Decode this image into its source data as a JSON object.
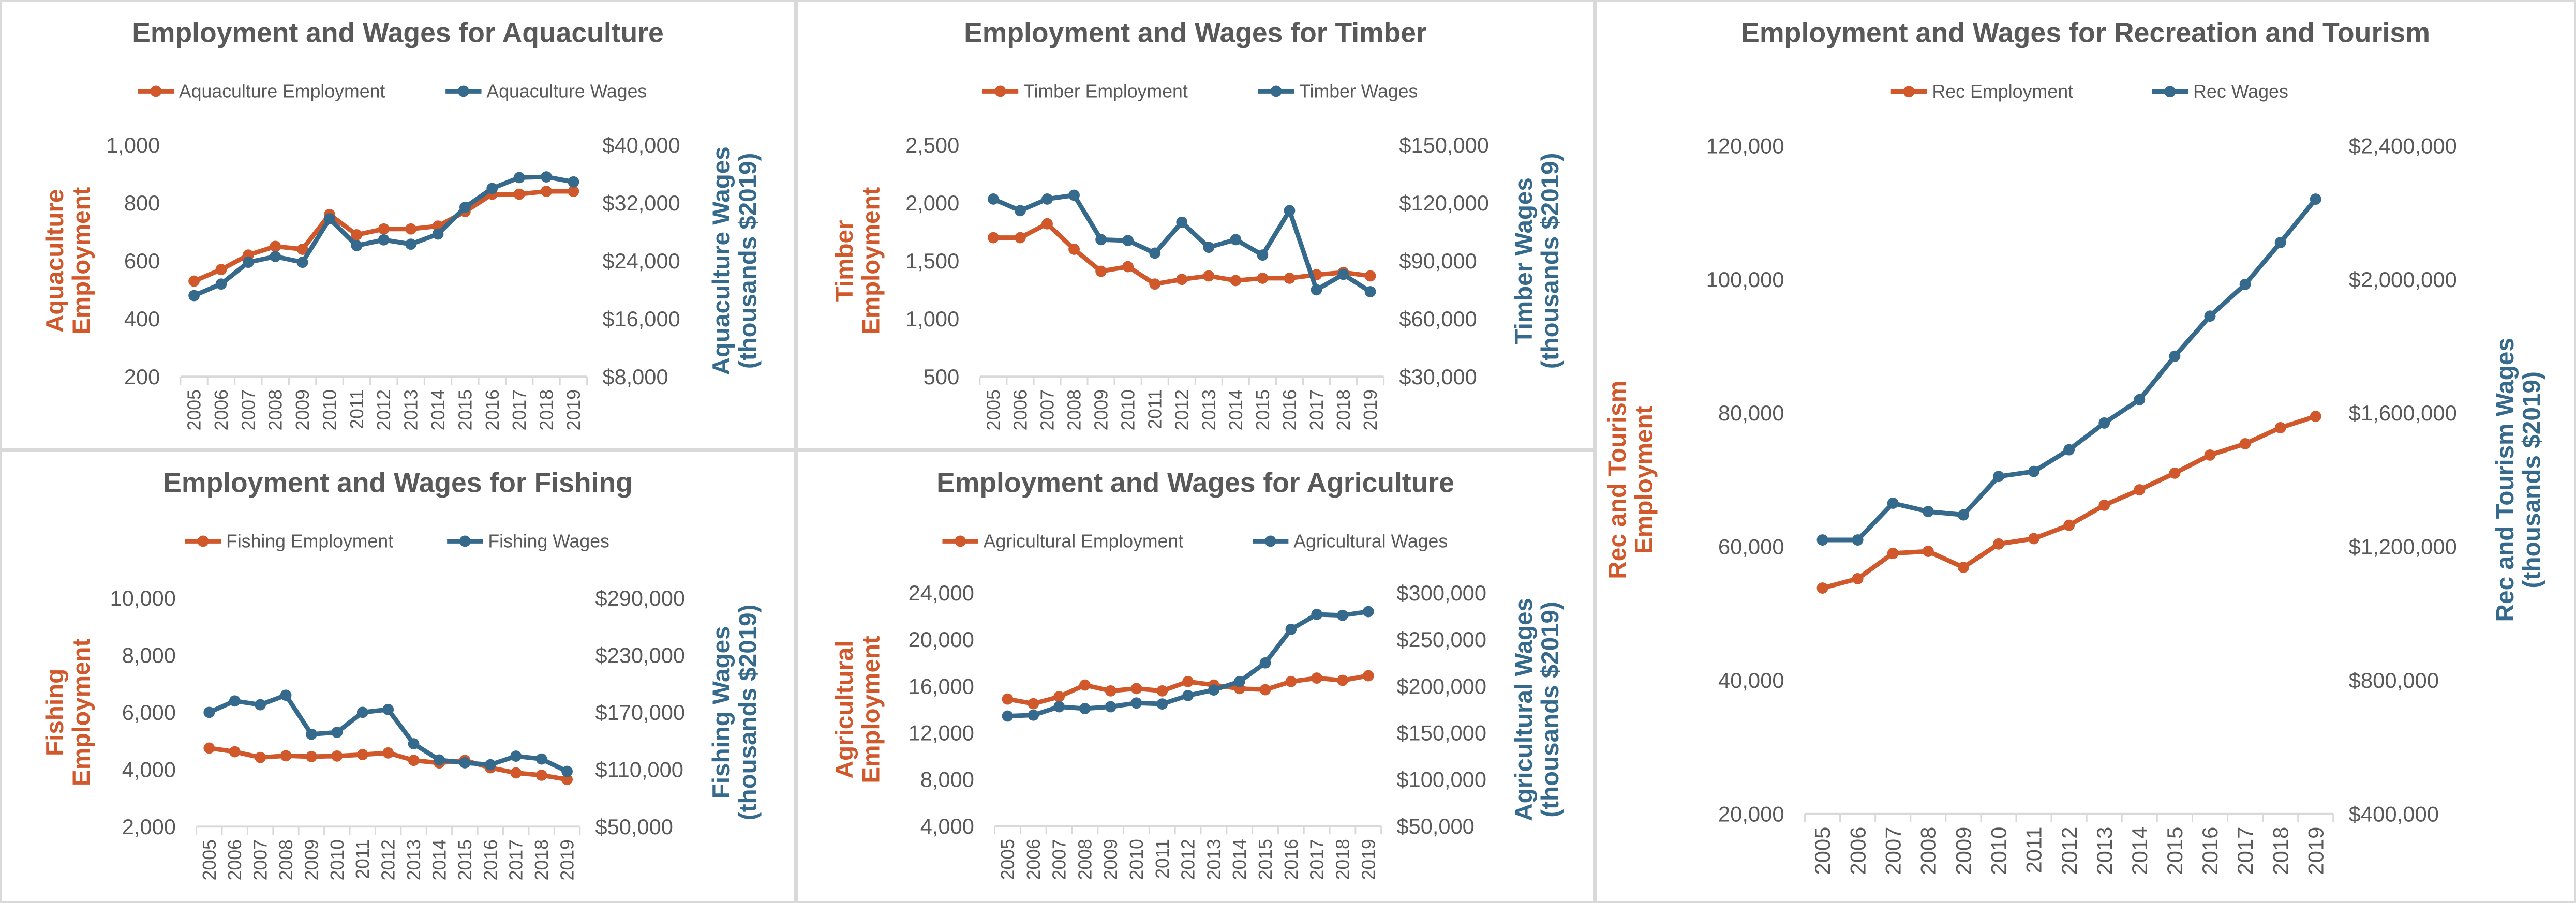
{
  "colors": {
    "employment": "#d0582b",
    "wages": "#356a8c",
    "grid_axis": "#d9d9d9",
    "text": "#595959"
  },
  "chart_data": [
    {
      "id": "aquaculture",
      "type": "line",
      "title": "Employment and Wages for Aquaculture",
      "categories": [
        "2005",
        "2006",
        "2007",
        "2008",
        "2009",
        "2010",
        "2011",
        "2012",
        "2013",
        "2014",
        "2015",
        "2016",
        "2017",
        "2018",
        "2019"
      ],
      "series": [
        {
          "name": "Aquaculture Employment",
          "axis": "left",
          "color": "#d0582b",
          "values": [
            530,
            570,
            620,
            650,
            640,
            760,
            690,
            710,
            710,
            720,
            770,
            830,
            830,
            840,
            840
          ]
        },
        {
          "name": "Aquaculture Wages",
          "axis": "right",
          "color": "#356a8c",
          "values": [
            19200,
            20800,
            23800,
            24600,
            23800,
            29800,
            26100,
            26900,
            26300,
            27700,
            31400,
            34000,
            35500,
            35600,
            34900
          ]
        }
      ],
      "ylabel": "Aquaculture\nEmployment",
      "y2label": "Aquaculture Wages\n(thousands $2019)",
      "ylim": [
        200,
        1000
      ],
      "yticks": [
        "1,000",
        "800",
        "600",
        "400",
        "200"
      ],
      "y2lim": [
        8000,
        40000
      ],
      "y2ticks": [
        "$40,000",
        "$32,000",
        "$24,000",
        "$16,000",
        "$8,000"
      ],
      "legend": "top",
      "grid": false
    },
    {
      "id": "timber",
      "type": "line",
      "title": "Employment and Wages for Timber",
      "categories": [
        "2005",
        "2006",
        "2007",
        "2008",
        "2009",
        "2010",
        "2011",
        "2012",
        "2013",
        "2014",
        "2015",
        "2016",
        "2017",
        "2018",
        "2019"
      ],
      "series": [
        {
          "name": "Timber Employment",
          "axis": "left",
          "color": "#d0582b",
          "values": [
            1700,
            1700,
            1820,
            1600,
            1410,
            1450,
            1300,
            1340,
            1370,
            1330,
            1350,
            1350,
            1380,
            1400,
            1370
          ]
        },
        {
          "name": "Timber Wages",
          "axis": "right",
          "color": "#356a8c",
          "values": [
            122000,
            116000,
            122000,
            124000,
            101000,
            100500,
            94000,
            110000,
            97000,
            101000,
            93000,
            116000,
            75000,
            83000,
            74000
          ]
        }
      ],
      "ylabel": "Timber\nEmployment",
      "y2label": "Timber Wages\n(thousands $2019)",
      "ylim": [
        500,
        2500
      ],
      "yticks": [
        "2,500",
        "2,000",
        "1,500",
        "1,000",
        "500"
      ],
      "y2lim": [
        30000,
        150000
      ],
      "y2ticks": [
        "$150,000",
        "$120,000",
        "$90,000",
        "$60,000",
        "$30,000"
      ],
      "legend": "top",
      "grid": false
    },
    {
      "id": "fishing",
      "type": "line",
      "title": "Employment and Wages for Fishing",
      "categories": [
        "2005",
        "2006",
        "2007",
        "2008",
        "2009",
        "2010",
        "2011",
        "2012",
        "2013",
        "2014",
        "2015",
        "2016",
        "2017",
        "2018",
        "2019"
      ],
      "series": [
        {
          "name": "Fishing Employment",
          "axis": "left",
          "color": "#d0582b",
          "values": [
            4750,
            4620,
            4420,
            4480,
            4450,
            4470,
            4520,
            4580,
            4320,
            4230,
            4320,
            4060,
            3880,
            3800,
            3650
          ]
        },
        {
          "name": "Fishing Wages",
          "axis": "right",
          "color": "#356a8c",
          "values": [
            170000,
            182000,
            178000,
            188000,
            147000,
            149000,
            170000,
            173000,
            137000,
            120000,
            117000,
            115000,
            124000,
            121000,
            108000
          ]
        }
      ],
      "ylabel": "Fishing\nEmployment",
      "y2label": "Fishing Wages\n(thousands $2019)",
      "ylim": [
        2000,
        10000
      ],
      "yticks": [
        "10,000",
        "8,000",
        "6,000",
        "4,000",
        "2,000"
      ],
      "y2lim": [
        50000,
        290000
      ],
      "y2ticks": [
        "$290,000",
        "$230,000",
        "$170,000",
        "$110,000",
        "$50,000"
      ],
      "legend": "top",
      "grid": false
    },
    {
      "id": "agriculture",
      "type": "line",
      "title": "Employment and Wages for Agriculture",
      "categories": [
        "2005",
        "2006",
        "2007",
        "2008",
        "2009",
        "2010",
        "2011",
        "2012",
        "2013",
        "2014",
        "2015",
        "2016",
        "2017",
        "2018",
        "2019"
      ],
      "series": [
        {
          "name": "Agricultural Employment",
          "axis": "left",
          "color": "#d0582b",
          "values": [
            14900,
            14500,
            15100,
            16100,
            15600,
            15800,
            15600,
            16400,
            16100,
            15800,
            15700,
            16400,
            16700,
            16500,
            16900
          ]
        },
        {
          "name": "Agricultural Wages",
          "axis": "right",
          "color": "#356a8c",
          "values": [
            168000,
            169000,
            178000,
            176000,
            178000,
            182000,
            181000,
            190000,
            196000,
            205000,
            225000,
            261000,
            277000,
            276000,
            280000
          ]
        }
      ],
      "ylabel": "Agricultural\nEmployment",
      "y2label": "Agricultural Wages\n(thousands $2019)",
      "ylim": [
        4000,
        24000
      ],
      "yticks": [
        "24,000",
        "20,000",
        "16,000",
        "12,000",
        "8,000",
        "4,000"
      ],
      "y2lim": [
        50000,
        300000
      ],
      "y2ticks": [
        "$300,000",
        "$250,000",
        "$200,000",
        "$150,000",
        "$100,000",
        "$50,000"
      ],
      "legend": "top",
      "grid": false
    },
    {
      "id": "recreation",
      "type": "line",
      "title": "Employment and Wages for Recreation and Tourism",
      "categories": [
        "2005",
        "2006",
        "2007",
        "2008",
        "2009",
        "2010",
        "2011",
        "2012",
        "2013",
        "2014",
        "2015",
        "2016",
        "2017",
        "2018",
        "2019"
      ],
      "series": [
        {
          "name": "Rec Employment",
          "axis": "left",
          "color": "#d0582b",
          "values": [
            53800,
            55200,
            59000,
            59300,
            56900,
            60400,
            61200,
            63200,
            66200,
            68500,
            71000,
            73700,
            75400,
            77800,
            79500
          ]
        },
        {
          "name": "Rec Wages",
          "axis": "right",
          "color": "#356a8c",
          "values": [
            1220000,
            1220000,
            1330000,
            1305000,
            1295000,
            1410000,
            1425000,
            1490000,
            1570000,
            1640000,
            1770000,
            1890000,
            1985000,
            2110000,
            2240000
          ]
        }
      ],
      "ylabel": "Rec and Tourism\nEmployment",
      "y2label": "Rec and Tourism Wages\n(thousands $2019)",
      "ylim": [
        20000,
        120000
      ],
      "yticks": [
        "120,000",
        "100,000",
        "80,000",
        "60,000",
        "40,000",
        "20,000"
      ],
      "y2lim": [
        400000,
        2400000
      ],
      "y2ticks": [
        "$2,400,000",
        "$2,000,000",
        "$1,600,000",
        "$1,200,000",
        "$800,000",
        "$400,000"
      ],
      "legend": "top",
      "grid": false
    }
  ]
}
